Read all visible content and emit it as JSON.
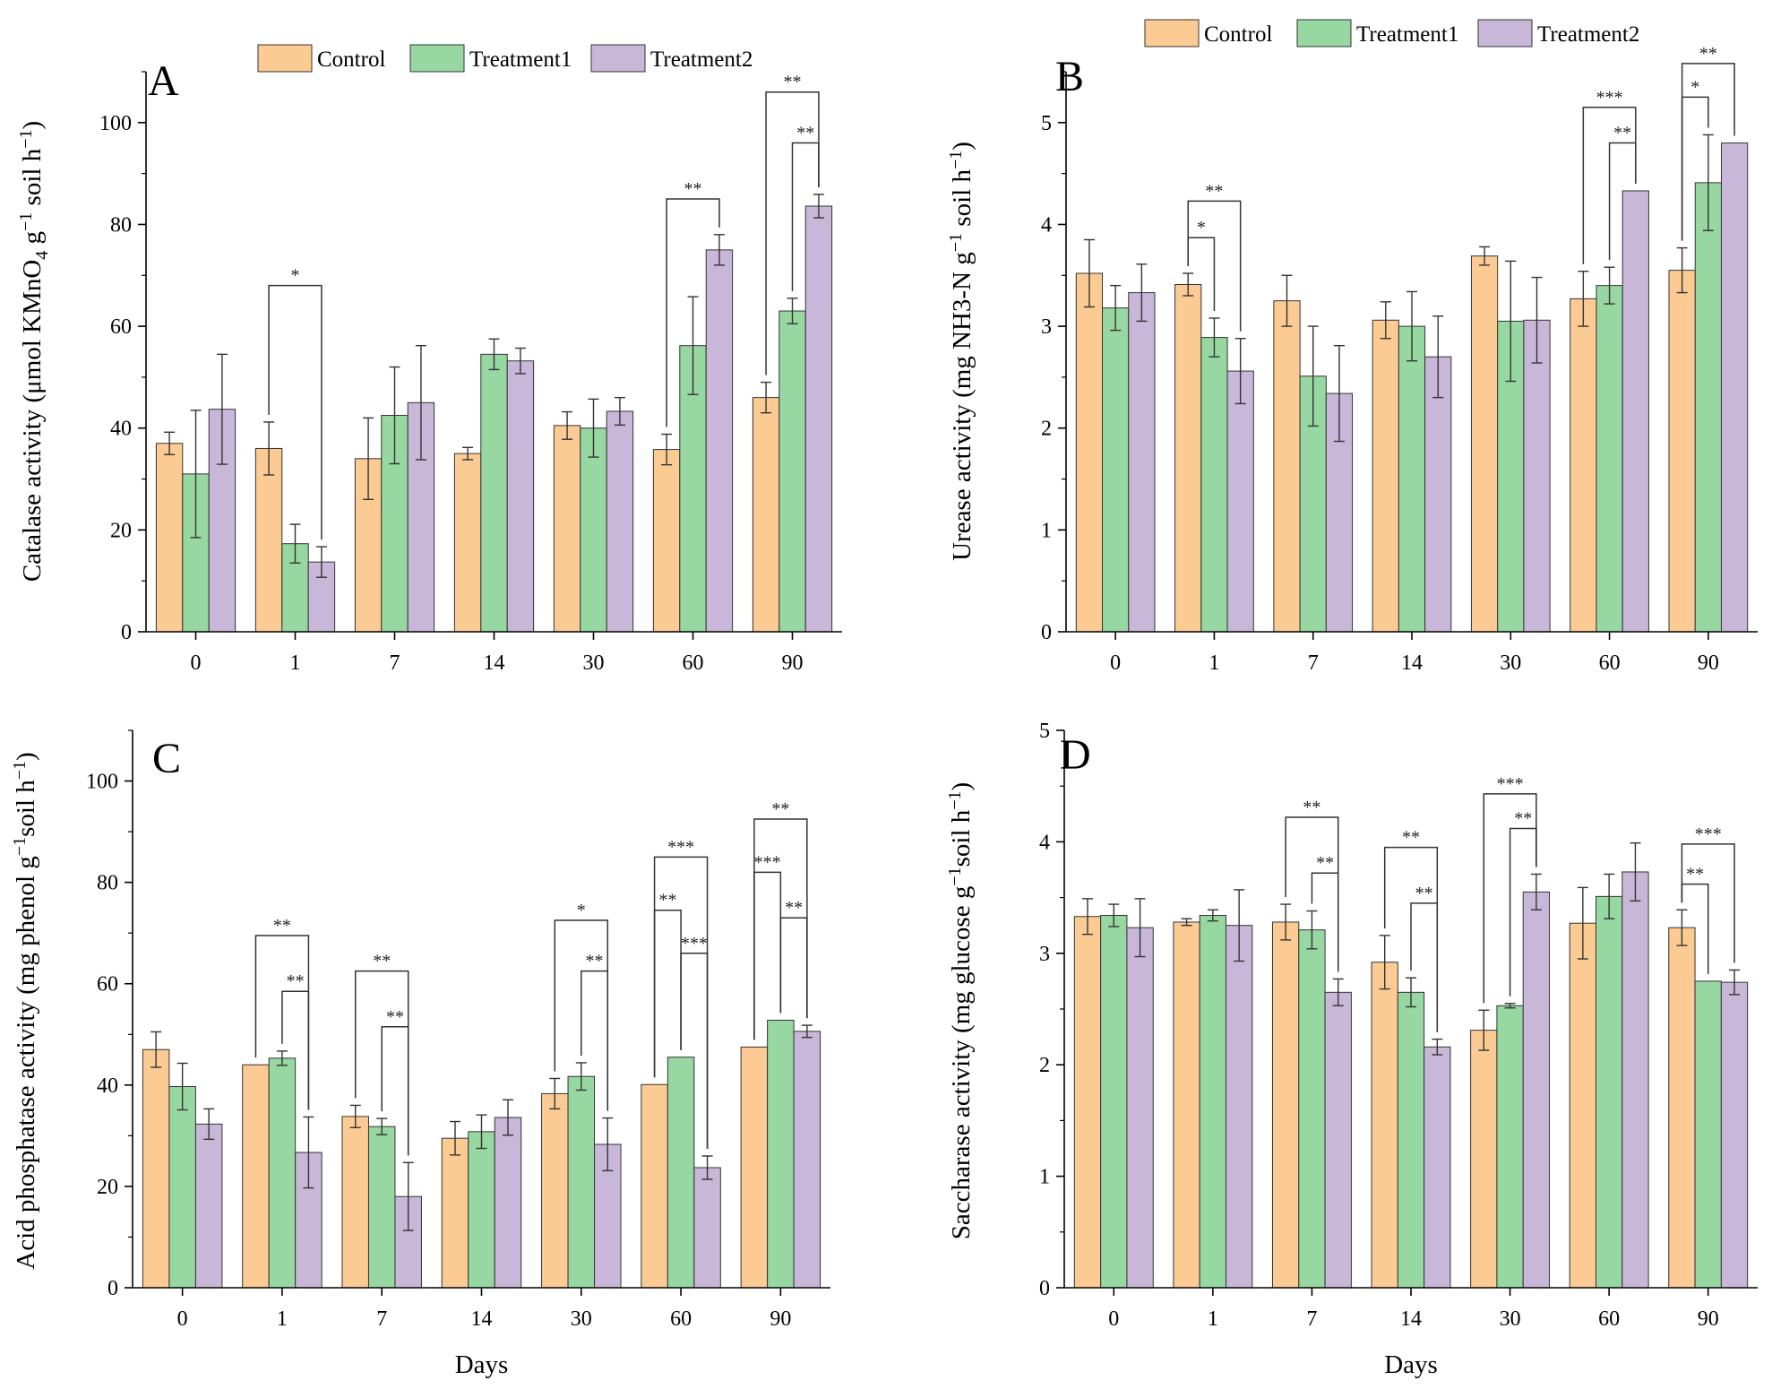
{
  "colors": {
    "Control": "#fbcb93",
    "Treatment1": "#97d7a1",
    "Treatment2": "#c8b7d8"
  },
  "chart_data": [
    {
      "type": "bar",
      "panel": "A",
      "xlabel": "",
      "ylabel": "Catalase activity (μmol KMnO",
      "ylabel_sub": "4",
      "ylabel_tail": " g",
      "ylabel_sup": "−1",
      "ylabel_end": " soil h",
      "ylabel_sup2": "−1",
      "ylabel_close": ")",
      "ylim": [
        0,
        110
      ],
      "yticks": [
        0,
        20,
        40,
        60,
        80,
        100
      ],
      "categories": [
        "0",
        "1",
        "7",
        "14",
        "30",
        "60",
        "90"
      ],
      "legend": [
        "Control",
        "Treatment1",
        "Treatment2"
      ],
      "series": [
        {
          "name": "Control",
          "values": [
            37,
            36,
            34,
            35,
            40.5,
            35.8,
            46
          ],
          "errors": [
            2.2,
            5.2,
            8,
            1.2,
            2.7,
            3,
            3
          ]
        },
        {
          "name": "Treatment1",
          "values": [
            31,
            17.3,
            42.5,
            54.5,
            40,
            56.2,
            63
          ],
          "errors": [
            12.5,
            3.8,
            9.5,
            3,
            5.7,
            9.6,
            2.5
          ]
        },
        {
          "name": "Treatment2",
          "values": [
            43.7,
            13.7,
            45,
            53.2,
            43.3,
            75,
            83.6
          ],
          "errors": [
            10.8,
            3,
            11.2,
            2.5,
            2.7,
            3,
            2.3
          ]
        }
      ],
      "significance": [
        {
          "group": 1,
          "from": 0,
          "to": 2,
          "label": "*",
          "level": 68
        },
        {
          "group": 5,
          "from": 0,
          "to": 2,
          "label": "**",
          "level": 85
        },
        {
          "group": 6,
          "from": 1,
          "to": 2,
          "label": "**",
          "level": 96
        },
        {
          "group": 6,
          "from": 0,
          "to": 2,
          "label": "**",
          "level": 106
        }
      ]
    },
    {
      "type": "bar",
      "panel": "B",
      "xlabel": "",
      "ylabel": "Urease activity (mg NH3-N g",
      "ylabel_sub": "",
      "ylabel_tail": "",
      "ylabel_sup": "−1",
      "ylabel_end": " soil h",
      "ylabel_sup2": "−1",
      "ylabel_close": ")",
      "ylim": [
        0,
        5.5
      ],
      "yticks": [
        0,
        1,
        2,
        3,
        4,
        5
      ],
      "categories": [
        "0",
        "1",
        "7",
        "14",
        "30",
        "60",
        "90"
      ],
      "legend": [
        "Control",
        "Treatment1",
        "Treatment2"
      ],
      "series": [
        {
          "name": "Control",
          "values": [
            3.52,
            3.41,
            3.25,
            3.06,
            3.69,
            3.27,
            3.55
          ],
          "errors": [
            0.33,
            0.11,
            0.25,
            0.18,
            0.09,
            0.27,
            0.22
          ]
        },
        {
          "name": "Treatment1",
          "values": [
            3.18,
            2.89,
            2.51,
            3.0,
            3.05,
            3.4,
            4.41
          ],
          "errors": [
            0.22,
            0.19,
            0.49,
            0.34,
            0.59,
            0.18,
            0.47
          ]
        },
        {
          "name": "Treatment2",
          "values": [
            3.33,
            2.56,
            2.34,
            2.7,
            3.06,
            4.33,
            4.8
          ],
          "errors": [
            0.28,
            0.32,
            0.47,
            0.4,
            0.42,
            0,
            0
          ]
        }
      ],
      "significance": [
        {
          "group": 1,
          "from": 0,
          "to": 1,
          "label": "*",
          "level": 3.87
        },
        {
          "group": 1,
          "from": 0,
          "to": 2,
          "label": "**",
          "level": 4.23
        },
        {
          "group": 5,
          "from": 1,
          "to": 2,
          "label": "**",
          "level": 4.8
        },
        {
          "group": 5,
          "from": 0,
          "to": 2,
          "label": "***",
          "level": 5.15
        },
        {
          "group": 6,
          "from": 0,
          "to": 1,
          "label": "*",
          "level": 5.25
        },
        {
          "group": 6,
          "from": 0,
          "to": 2,
          "label": "**",
          "level": 5.58
        }
      ]
    },
    {
      "type": "bar",
      "panel": "C",
      "xlabel": "Days",
      "ylabel": "Acid phosphatase activity (mg phenol g",
      "ylabel_sub": "",
      "ylabel_tail": "",
      "ylabel_sup": "−1",
      "ylabel_end": "soil h",
      "ylabel_sup2": "−1",
      "ylabel_close": ")",
      "ylim": [
        0,
        110
      ],
      "yticks": [
        0,
        20,
        40,
        60,
        80,
        100
      ],
      "categories": [
        "0",
        "1",
        "7",
        "14",
        "30",
        "60",
        "90"
      ],
      "legend": [
        "Control",
        "Treatment1",
        "Treatment2"
      ],
      "series": [
        {
          "name": "Control",
          "values": [
            47,
            44,
            33.8,
            29.5,
            38.3,
            40.1,
            47.5
          ],
          "errors": [
            3.5,
            0,
            2.2,
            3.3,
            3,
            0,
            0
          ]
        },
        {
          "name": "Treatment1",
          "values": [
            39.7,
            45.3,
            31.8,
            30.8,
            41.7,
            45.5,
            52.8
          ],
          "errors": [
            4.6,
            1.4,
            1.6,
            3.3,
            2.7,
            0,
            0
          ]
        },
        {
          "name": "Treatment2",
          "values": [
            32.3,
            26.7,
            18,
            33.6,
            28.3,
            23.7,
            50.6
          ],
          "errors": [
            3,
            7,
            6.7,
            3.5,
            5.2,
            2.3,
            1.2
          ]
        }
      ],
      "significance": [
        {
          "group": 1,
          "from": 1,
          "to": 2,
          "label": "**",
          "level": 58.5
        },
        {
          "group": 1,
          "from": 0,
          "to": 2,
          "label": "**",
          "level": 69.5
        },
        {
          "group": 2,
          "from": 1,
          "to": 2,
          "label": "**",
          "level": 51.5
        },
        {
          "group": 2,
          "from": 0,
          "to": 2,
          "label": "**",
          "level": 62.5
        },
        {
          "group": 4,
          "from": 1,
          "to": 2,
          "label": "**",
          "level": 62.5
        },
        {
          "group": 4,
          "from": 0,
          "to": 2,
          "label": "*",
          "level": 72.5
        },
        {
          "group": 5,
          "from": 1,
          "to": 2,
          "label": "***",
          "level": 66
        },
        {
          "group": 5,
          "from": 0,
          "to": 1,
          "label": "**",
          "level": 74.5
        },
        {
          "group": 5,
          "from": 0,
          "to": 2,
          "label": "***",
          "level": 85
        },
        {
          "group": 6,
          "from": 1,
          "to": 2,
          "label": "**",
          "level": 73
        },
        {
          "group": 6,
          "from": 0,
          "to": 1,
          "label": "***",
          "level": 82
        },
        {
          "group": 6,
          "from": 0,
          "to": 2,
          "label": "**",
          "level": 92.5
        }
      ]
    },
    {
      "type": "bar",
      "panel": "D",
      "xlabel": "Days",
      "ylabel": "Saccharase activity (mg glucose  g",
      "ylabel_sub": "",
      "ylabel_tail": "",
      "ylabel_sup": "−1",
      "ylabel_end": "soil h",
      "ylabel_sup2": "−1",
      "ylabel_close": ")",
      "ylim": [
        0,
        5
      ],
      "yticks": [
        0,
        1,
        2,
        3,
        4,
        5
      ],
      "categories": [
        "0",
        "1",
        "7",
        "14",
        "30",
        "60",
        "90"
      ],
      "legend": [
        "Control",
        "Treatment1",
        "Treatment2"
      ],
      "series": [
        {
          "name": "Control",
          "values": [
            3.33,
            3.28,
            3.28,
            2.92,
            2.31,
            3.27,
            3.23
          ],
          "errors": [
            0.16,
            0.03,
            0.16,
            0.24,
            0.18,
            0.32,
            0.16
          ]
        },
        {
          "name": "Treatment1",
          "values": [
            3.34,
            3.34,
            3.21,
            2.65,
            2.53,
            3.51,
            2.75
          ],
          "errors": [
            0.1,
            0.05,
            0.17,
            0.13,
            0.02,
            0.2,
            0
          ]
        },
        {
          "name": "Treatment2",
          "values": [
            3.23,
            3.25,
            2.65,
            2.16,
            3.55,
            3.73,
            2.74
          ],
          "errors": [
            0.26,
            0.32,
            0.12,
            0.07,
            0.16,
            0.26,
            0.11
          ]
        }
      ],
      "significance": [
        {
          "group": 2,
          "from": 1,
          "to": 2,
          "label": "**",
          "level": 3.72
        },
        {
          "group": 2,
          "from": 0,
          "to": 2,
          "label": "**",
          "level": 4.22
        },
        {
          "group": 3,
          "from": 1,
          "to": 2,
          "label": "**",
          "level": 3.45
        },
        {
          "group": 3,
          "from": 0,
          "to": 2,
          "label": "**",
          "level": 3.95
        },
        {
          "group": 4,
          "from": 1,
          "to": 2,
          "label": "**",
          "level": 4.12
        },
        {
          "group": 4,
          "from": 0,
          "to": 2,
          "label": "***",
          "level": 4.43
        },
        {
          "group": 6,
          "from": 0,
          "to": 1,
          "label": "**",
          "level": 3.62
        },
        {
          "group": 6,
          "from": 0,
          "to": 2,
          "label": "***",
          "level": 3.98
        }
      ]
    }
  ]
}
